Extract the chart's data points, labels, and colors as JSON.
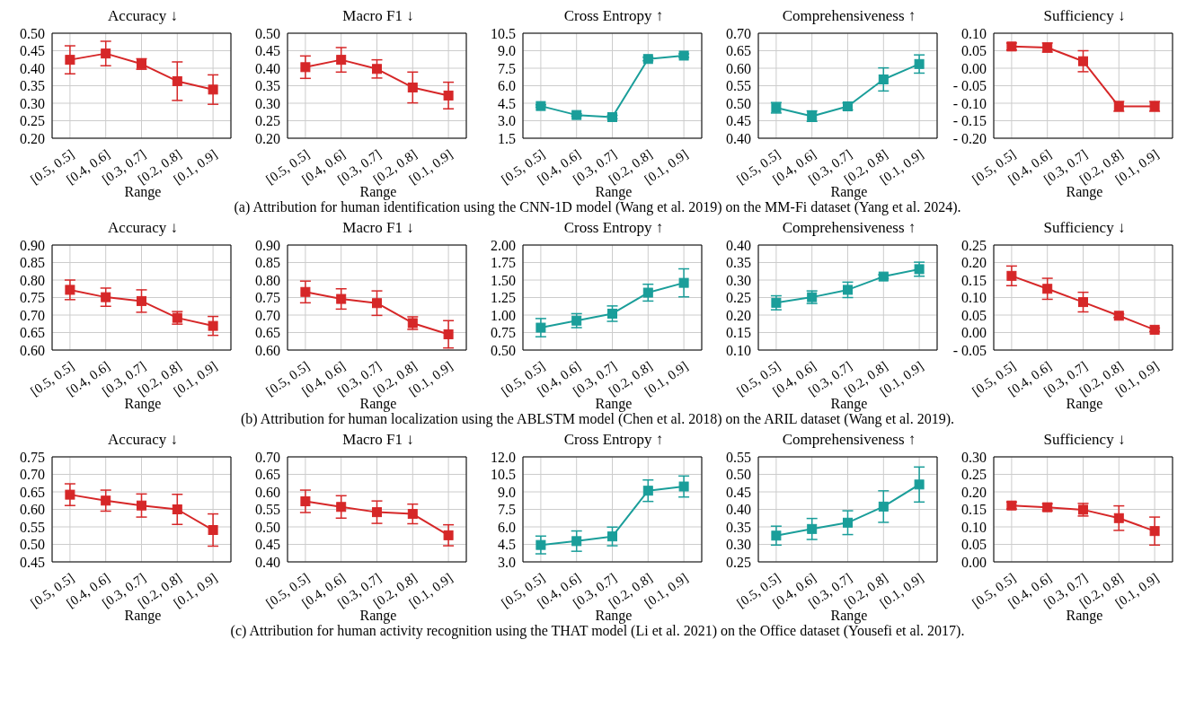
{
  "chart_data": [
    {
      "type": "line",
      "title": "Accuracy ↓",
      "xlabel": "Range",
      "categories": [
        "[0.5, 0.5]",
        "[0.4, 0.6]",
        "[0.3, 0.7]",
        "[0.2, 0.8]",
        "[0.1, 0.9]"
      ],
      "values": [
        0.424,
        0.442,
        0.412,
        0.363,
        0.339
      ],
      "errors": [
        0.04,
        0.035,
        0.015,
        0.055,
        0.042
      ],
      "color": "#d62728",
      "marker": "square",
      "grid": true,
      "ylim": [
        0.2,
        0.5
      ],
      "yticks": [
        {
          "value": 0.2,
          "label": "0.20"
        },
        0.25,
        {
          "value": 0.3,
          "label": "0.30"
        },
        0.35,
        {
          "value": 0.4,
          "label": "0.40"
        },
        0.45,
        {
          "value": 0.5,
          "label": "0.50"
        }
      ],
      "annotations": [
        "(a)  Attribution for human identification using the CNN-1D model (Wang et al. 2019) on the MM-Fi dataset (Yang et al. 2024)."
      ]
    },
    {
      "type": "line",
      "title": "Macro F1 ↓",
      "xlabel": "Range",
      "categories": [
        "[0.5, 0.5]",
        "[0.4, 0.6]",
        "[0.3, 0.7]",
        "[0.2, 0.8]",
        "[0.1, 0.9]"
      ],
      "values": [
        0.403,
        0.424,
        0.398,
        0.345,
        0.322
      ],
      "errors": [
        0.032,
        0.035,
        0.026,
        0.044,
        0.038
      ],
      "color": "#d62728",
      "marker": "square",
      "grid": true,
      "ylim": [
        0.2,
        0.5
      ],
      "yticks": [
        {
          "value": 0.2,
          "label": "0.20"
        },
        0.25,
        {
          "value": 0.3,
          "label": "0.30"
        },
        0.35,
        {
          "value": 0.4,
          "label": "0.40"
        },
        0.45,
        {
          "value": 0.5,
          "label": "0.50"
        }
      ]
    },
    {
      "type": "line",
      "title": "Cross Entropy ↑",
      "xlabel": "Range",
      "categories": [
        "[0.5, 0.5]",
        "[0.4, 0.6]",
        "[0.3, 0.7]",
        "[0.2, 0.8]",
        "[0.1, 0.9]"
      ],
      "values": [
        4.26,
        3.49,
        3.31,
        8.29,
        8.58
      ],
      "errors": [
        0.1,
        0.1,
        0.15,
        0.15,
        0.15
      ],
      "color": "#1a9e9a",
      "marker": "square",
      "grid": true,
      "ylim": [
        1.5,
        10.5
      ],
      "yticks": [
        1.5,
        {
          "value": 3,
          "label": "3.0"
        },
        4.5,
        {
          "value": 6,
          "label": "6.0"
        },
        7.5,
        {
          "value": 9,
          "label": "9.0"
        },
        10.5
      ]
    },
    {
      "type": "line",
      "title": "Comprehensiveness ↑",
      "xlabel": "Range",
      "categories": [
        "[0.5, 0.5]",
        "[0.4, 0.6]",
        "[0.3, 0.7]",
        "[0.2, 0.8]",
        "[0.1, 0.9]"
      ],
      "values": [
        0.487,
        0.463,
        0.491,
        0.568,
        0.612
      ],
      "errors": [
        0.015,
        0.015,
        0.01,
        0.033,
        0.026
      ],
      "color": "#1a9e9a",
      "marker": "square",
      "grid": true,
      "ylim": [
        0.4,
        0.7
      ],
      "yticks": [
        {
          "value": 0.4,
          "label": "0.40"
        },
        0.45,
        {
          "value": 0.5,
          "label": "0.50"
        },
        0.55,
        {
          "value": 0.6,
          "label": "0.60"
        },
        0.65,
        {
          "value": 0.7,
          "label": "0.70"
        }
      ]
    },
    {
      "type": "line",
      "title": "Sufficiency ↓",
      "xlabel": "Range",
      "categories": [
        "[0.5, 0.5]",
        "[0.4, 0.6]",
        "[0.3, 0.7]",
        "[0.2, 0.8]",
        "[0.1, 0.9]"
      ],
      "values": [
        0.062,
        0.059,
        0.02,
        -0.109,
        -0.109
      ],
      "errors": [
        0.01,
        0.013,
        0.03,
        0.014,
        0.014
      ],
      "color": "#d62728",
      "marker": "square",
      "grid": true,
      "ylim": [
        -0.2,
        0.1
      ],
      "yticks": [
        {
          "value": -0.2,
          "label": "- 0.20"
        },
        {
          "value": -0.15,
          "label": "- 0.15"
        },
        {
          "value": -0.1,
          "label": "- 0.10"
        },
        {
          "value": -0.05,
          "label": "- 0.05"
        },
        {
          "value": 0,
          "label": "0.00"
        },
        0.05,
        {
          "value": 0.1,
          "label": "0.10"
        }
      ]
    },
    {
      "type": "line",
      "title": "Accuracy ↓",
      "xlabel": "Range",
      "categories": [
        "[0.5, 0.5]",
        "[0.4, 0.6]",
        "[0.3, 0.7]",
        "[0.2, 0.8]",
        "[0.1, 0.9]"
      ],
      "values": [
        0.772,
        0.751,
        0.74,
        0.692,
        0.669
      ],
      "errors": [
        0.028,
        0.026,
        0.032,
        0.018,
        0.027
      ],
      "color": "#d62728",
      "marker": "square",
      "grid": true,
      "ylim": [
        0.6,
        0.9
      ],
      "yticks": [
        {
          "value": 0.6,
          "label": "0.60"
        },
        0.65,
        {
          "value": 0.7,
          "label": "0.70"
        },
        0.75,
        {
          "value": 0.8,
          "label": "0.80"
        },
        0.85,
        {
          "value": 0.9,
          "label": "0.90"
        }
      ],
      "annotations": [
        "(b)  Attribution for human localization using the ABLSTM model (Chen et al. 2018) on the ARIL dataset (Wang et al. 2019)."
      ]
    },
    {
      "type": "line",
      "title": "Macro F1 ↓",
      "xlabel": "Range",
      "categories": [
        "[0.5, 0.5]",
        "[0.4, 0.6]",
        "[0.3, 0.7]",
        "[0.2, 0.8]",
        "[0.1, 0.9]"
      ],
      "values": [
        0.766,
        0.746,
        0.734,
        0.677,
        0.645
      ],
      "errors": [
        0.031,
        0.029,
        0.035,
        0.018,
        0.039
      ],
      "color": "#d62728",
      "marker": "square",
      "grid": true,
      "ylim": [
        0.6,
        0.9
      ],
      "yticks": [
        {
          "value": 0.6,
          "label": "0.60"
        },
        0.65,
        {
          "value": 0.7,
          "label": "0.70"
        },
        0.75,
        {
          "value": 0.8,
          "label": "0.80"
        },
        0.85,
        {
          "value": 0.9,
          "label": "0.90"
        }
      ]
    },
    {
      "type": "line",
      "title": "Cross Entropy ↑",
      "xlabel": "Range",
      "categories": [
        "[0.5, 0.5]",
        "[0.4, 0.6]",
        "[0.3, 0.7]",
        "[0.2, 0.8]",
        "[0.1, 0.9]"
      ],
      "values": [
        0.82,
        0.92,
        1.02,
        1.32,
        1.46
      ],
      "errors": [
        0.13,
        0.1,
        0.11,
        0.12,
        0.2
      ],
      "color": "#1a9e9a",
      "marker": "square",
      "grid": true,
      "ylim": [
        0.5,
        2
      ],
      "yticks": [
        {
          "value": 0.5,
          "label": "0.50"
        },
        0.75,
        {
          "value": 1,
          "label": "1.00"
        },
        1.25,
        {
          "value": 1.5,
          "label": "1.50"
        },
        1.75,
        {
          "value": 2,
          "label": "2.00"
        }
      ]
    },
    {
      "type": "line",
      "title": "Comprehensiveness ↑",
      "xlabel": "Range",
      "categories": [
        "[0.5, 0.5]",
        "[0.4, 0.6]",
        "[0.3, 0.7]",
        "[0.2, 0.8]",
        "[0.1, 0.9]"
      ],
      "values": [
        0.235,
        0.251,
        0.272,
        0.31,
        0.331
      ],
      "errors": [
        0.02,
        0.018,
        0.022,
        0.005,
        0.02
      ],
      "color": "#1a9e9a",
      "marker": "square",
      "grid": true,
      "ylim": [
        0.1,
        0.4
      ],
      "yticks": [
        {
          "value": 0.1,
          "label": "0.10"
        },
        0.15,
        {
          "value": 0.2,
          "label": "0.20"
        },
        0.25,
        {
          "value": 0.3,
          "label": "0.30"
        },
        0.35,
        {
          "value": 0.4,
          "label": "0.40"
        }
      ]
    },
    {
      "type": "line",
      "title": "Sufficiency ↓",
      "xlabel": "Range",
      "categories": [
        "[0.5, 0.5]",
        "[0.4, 0.6]",
        "[0.3, 0.7]",
        "[0.2, 0.8]",
        "[0.1, 0.9]"
      ],
      "values": [
        0.162,
        0.125,
        0.087,
        0.048,
        0.008
      ],
      "errors": [
        0.028,
        0.03,
        0.028,
        0.005,
        0.005
      ],
      "color": "#d62728",
      "marker": "square",
      "grid": true,
      "ylim": [
        -0.05,
        0.25
      ],
      "yticks": [
        {
          "value": -0.05,
          "label": "- 0.05"
        },
        {
          "value": 0,
          "label": "0.00"
        },
        0.05,
        {
          "value": 0.1,
          "label": "0.10"
        },
        0.15,
        {
          "value": 0.2,
          "label": "0.20"
        },
        0.25
      ]
    },
    {
      "type": "line",
      "title": "Accuracy ↓",
      "xlabel": "Range",
      "categories": [
        "[0.5, 0.5]",
        "[0.4, 0.6]",
        "[0.3, 0.7]",
        "[0.2, 0.8]",
        "[0.1, 0.9]"
      ],
      "values": [
        0.642,
        0.625,
        0.611,
        0.6,
        0.541
      ],
      "errors": [
        0.031,
        0.03,
        0.033,
        0.043,
        0.046
      ],
      "color": "#d62728",
      "marker": "square",
      "grid": true,
      "ylim": [
        0.45,
        0.75
      ],
      "yticks": [
        0.45,
        {
          "value": 0.5,
          "label": "0.50"
        },
        0.55,
        {
          "value": 0.6,
          "label": "0.60"
        },
        0.65,
        {
          "value": 0.7,
          "label": "0.70"
        },
        0.75
      ],
      "annotations": [
        "(c)  Attribution for human activity recognition using the THAT model (Li et al. 2021) on the Office dataset (Yousefi et al. 2017)."
      ]
    },
    {
      "type": "line",
      "title": "Macro F1 ↓",
      "xlabel": "Range",
      "categories": [
        "[0.5, 0.5]",
        "[0.4, 0.6]",
        "[0.3, 0.7]",
        "[0.2, 0.8]",
        "[0.1, 0.9]"
      ],
      "values": [
        0.573,
        0.557,
        0.542,
        0.537,
        0.476
      ],
      "errors": [
        0.032,
        0.032,
        0.032,
        0.028,
        0.03
      ],
      "color": "#d62728",
      "marker": "square",
      "grid": true,
      "ylim": [
        0.4,
        0.7
      ],
      "yticks": [
        {
          "value": 0.4,
          "label": "0.40"
        },
        0.45,
        {
          "value": 0.5,
          "label": "0.50"
        },
        0.55,
        {
          "value": 0.6,
          "label": "0.60"
        },
        0.65,
        {
          "value": 0.7,
          "label": "0.70"
        }
      ]
    },
    {
      "type": "line",
      "title": "Cross Entropy ↑",
      "xlabel": "Range",
      "categories": [
        "[0.5, 0.5]",
        "[0.4, 0.6]",
        "[0.3, 0.7]",
        "[0.2, 0.8]",
        "[0.1, 0.9]"
      ],
      "values": [
        4.45,
        4.78,
        5.18,
        9.1,
        9.46
      ],
      "errors": [
        0.76,
        0.87,
        0.8,
        0.92,
        0.9
      ],
      "color": "#1a9e9a",
      "marker": "square",
      "grid": true,
      "ylim": [
        3,
        12
      ],
      "yticks": [
        {
          "value": 3,
          "label": "3.0"
        },
        4.5,
        {
          "value": 6,
          "label": "6.0"
        },
        7.5,
        {
          "value": 9,
          "label": "9.0"
        },
        10.5,
        {
          "value": 12,
          "label": "12.0"
        }
      ]
    },
    {
      "type": "line",
      "title": "Comprehensiveness ↑",
      "xlabel": "Range",
      "categories": [
        "[0.5, 0.5]",
        "[0.4, 0.6]",
        "[0.3, 0.7]",
        "[0.2, 0.8]",
        "[0.1, 0.9]"
      ],
      "values": [
        0.325,
        0.344,
        0.362,
        0.408,
        0.471
      ],
      "errors": [
        0.027,
        0.03,
        0.034,
        0.045,
        0.05
      ],
      "color": "#1a9e9a",
      "marker": "square",
      "grid": true,
      "ylim": [
        0.25,
        0.55
      ],
      "yticks": [
        0.25,
        {
          "value": 0.3,
          "label": "0.30"
        },
        0.35,
        {
          "value": 0.4,
          "label": "0.40"
        },
        0.45,
        {
          "value": 0.5,
          "label": "0.50"
        },
        0.55
      ]
    },
    {
      "type": "line",
      "title": "Sufficiency ↓",
      "xlabel": "Range",
      "categories": [
        "[0.5, 0.5]",
        "[0.4, 0.6]",
        "[0.3, 0.7]",
        "[0.2, 0.8]",
        "[0.1, 0.9]"
      ],
      "values": [
        0.161,
        0.156,
        0.149,
        0.125,
        0.088
      ],
      "errors": [
        0.01,
        0.01,
        0.018,
        0.035,
        0.04
      ],
      "color": "#d62728",
      "marker": "square",
      "grid": true,
      "ylim": [
        0,
        0.3
      ],
      "yticks": [
        {
          "value": 0,
          "label": "0.00"
        },
        0.05,
        {
          "value": 0.1,
          "label": "0.10"
        },
        0.15,
        {
          "value": 0.2,
          "label": "0.20"
        },
        0.25,
        {
          "value": 0.3,
          "label": "0.30"
        }
      ]
    }
  ]
}
